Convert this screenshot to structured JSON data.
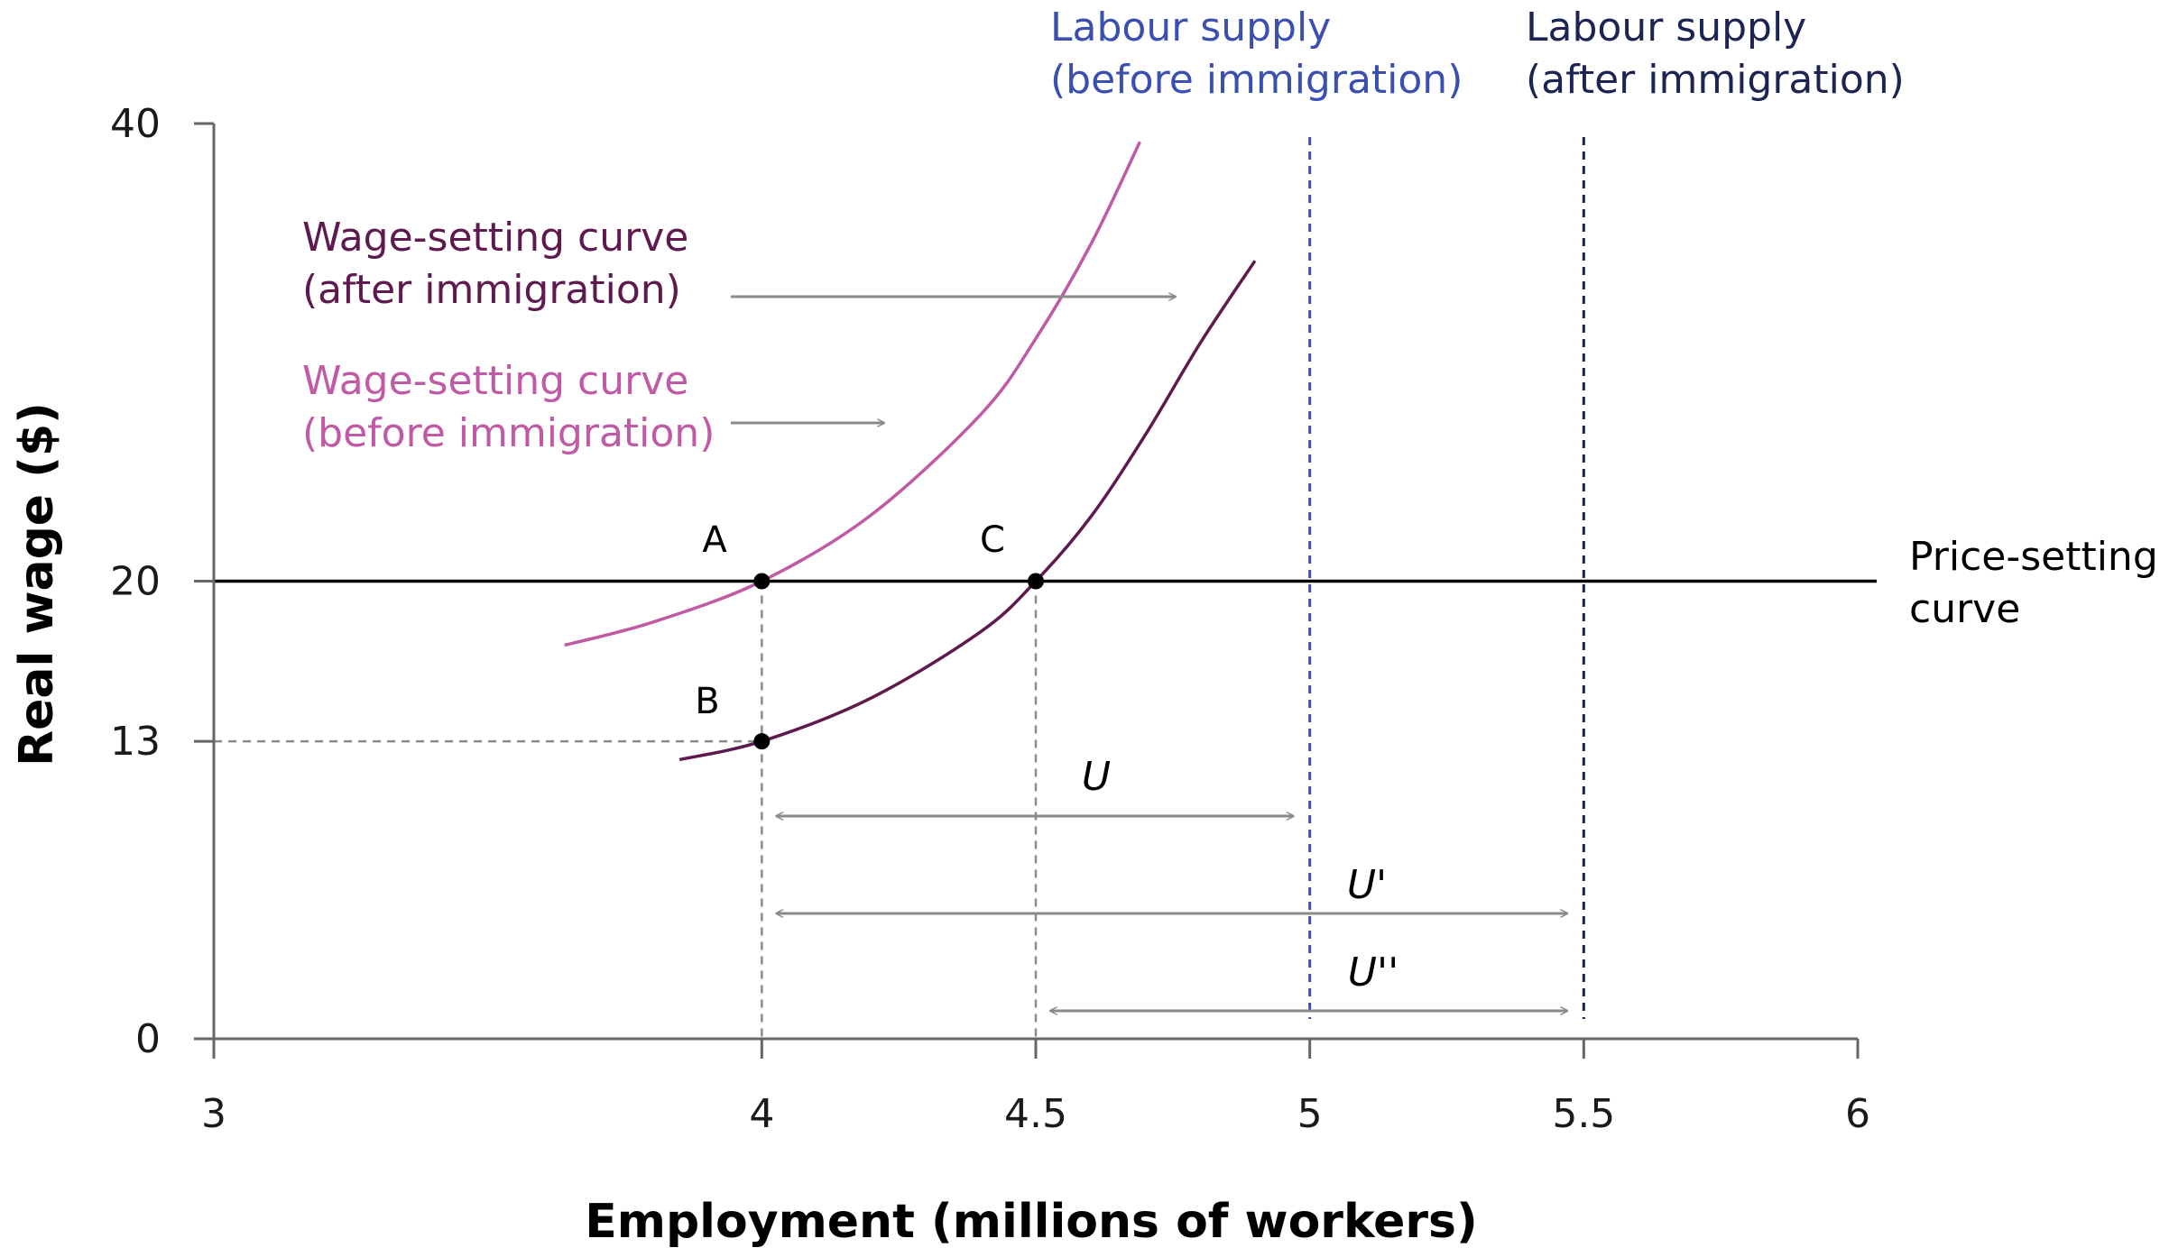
{
  "chart_data": {
    "type": "line",
    "xlabel": "Employment (millions of workers)",
    "ylabel": "Real wage ($)",
    "xlim": [
      3,
      6
    ],
    "ylim": [
      0,
      40
    ],
    "x_ticks": [
      "3",
      "4",
      "4.5",
      "5",
      "5.5",
      "6"
    ],
    "y_ticks": [
      "0",
      "13",
      "20",
      "40"
    ],
    "grid": false,
    "colors": {
      "ws_before": "#c05aa5",
      "ws_after": "#5e1a4e",
      "ls_before": "#3a4fb0",
      "ls_after": "#1c2552",
      "price_setting": "#000000",
      "arrow": "#8a8a8a",
      "guide": "#8a8a8a"
    },
    "series": [
      {
        "name_lines": [
          "Wage-setting curve",
          "(before immigration)"
        ],
        "points": [
          [
            3.64,
            17.2
          ],
          [
            3.8,
            18.2
          ],
          [
            4.0,
            20.0
          ],
          [
            4.2,
            22.9
          ],
          [
            4.4,
            27.3
          ],
          [
            4.5,
            30.6
          ],
          [
            4.6,
            34.7
          ],
          [
            4.69,
            39.2
          ]
        ]
      },
      {
        "name_lines": [
          "Wage-setting curve",
          "(after immigration)"
        ],
        "points": [
          [
            3.85,
            12.2
          ],
          [
            4.0,
            13.0
          ],
          [
            4.2,
            14.9
          ],
          [
            4.4,
            17.8
          ],
          [
            4.5,
            20.0
          ],
          [
            4.6,
            22.8
          ],
          [
            4.7,
            26.4
          ],
          [
            4.8,
            30.4
          ],
          [
            4.9,
            34.0
          ]
        ]
      },
      {
        "name_lines": [
          "Price-setting",
          "curve"
        ],
        "y": 20
      },
      {
        "name_lines": [
          "Labour supply",
          "(before immigration)"
        ],
        "x": 5.0
      },
      {
        "name_lines": [
          "Labour supply",
          "(after immigration)"
        ],
        "x": 5.5
      }
    ],
    "points": [
      {
        "label": "A",
        "x": 4.0,
        "y": 20
      },
      {
        "label": "B",
        "x": 4.0,
        "y": 13
      },
      {
        "label": "C",
        "x": 4.5,
        "y": 20
      }
    ],
    "annotations": [
      {
        "label": "U",
        "x_from": 4.0,
        "x_to": 5.0
      },
      {
        "label": "U'",
        "x_from": 4.0,
        "x_to": 5.5
      },
      {
        "label": "U''",
        "x_from": 4.5,
        "x_to": 5.5
      }
    ]
  }
}
